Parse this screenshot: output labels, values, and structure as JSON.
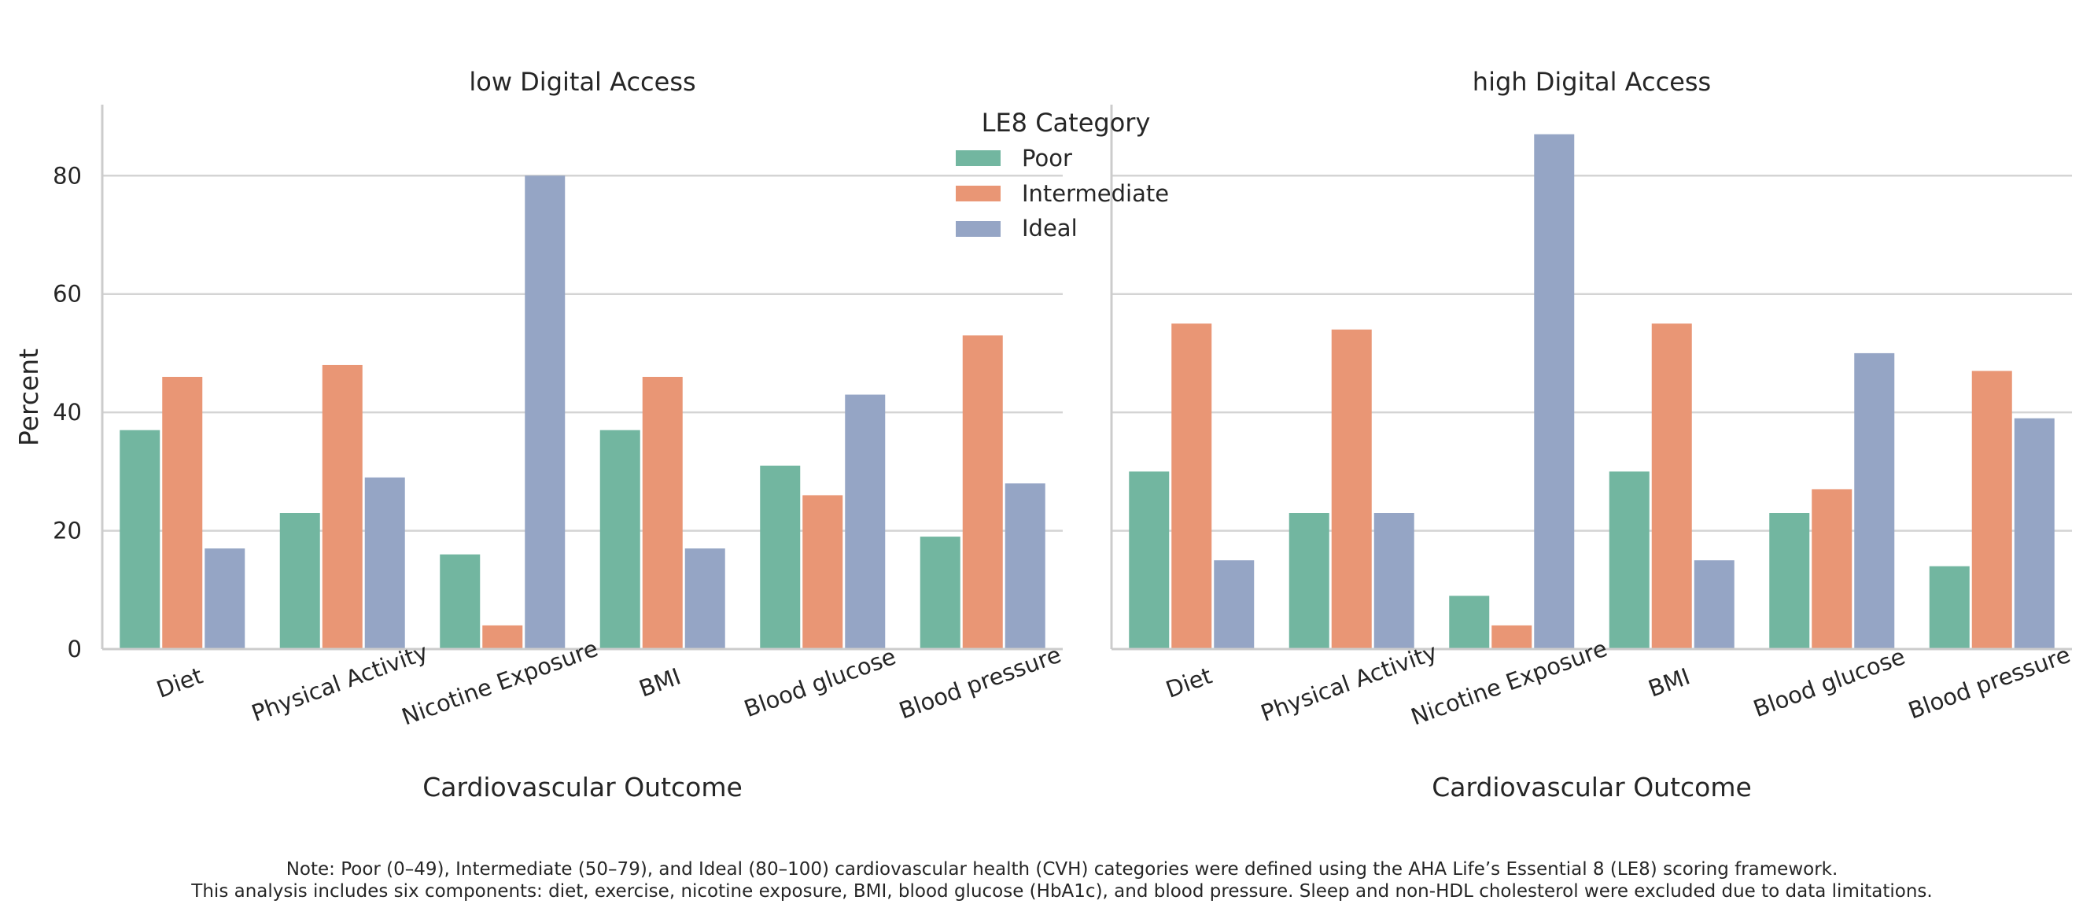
{
  "chart_data": {
    "type": "bar",
    "facet_by": "Digital Access",
    "categories": [
      "Diet",
      "Physical Activity",
      "Nicotine Exposure",
      "BMI",
      "Blood glucose",
      "Blood pressure"
    ],
    "xlabel": "Cardiovascular Outcome",
    "ylabel": "Percent",
    "ylim": [
      0,
      92
    ],
    "yticks": [
      "0",
      "20",
      "40",
      "60",
      "80"
    ],
    "ytick_values": [
      0,
      20,
      40,
      60,
      80
    ],
    "grid": true,
    "legend": {
      "title": "LE8 Category",
      "placement": "top-center",
      "entries": [
        "Poor",
        "Intermediate",
        "Ideal"
      ]
    },
    "colors": {
      "Poor": "#72b6a0",
      "Intermediate": "#e99675",
      "Ideal": "#95a5c5"
    },
    "panels": [
      {
        "title": "low  Digital Access",
        "series": [
          {
            "name": "Poor",
            "values": [
              37,
              23,
              16,
              37,
              31,
              19
            ]
          },
          {
            "name": "Intermediate",
            "values": [
              46,
              48,
              4,
              46,
              26,
              53
            ]
          },
          {
            "name": "Ideal",
            "values": [
              17,
              29,
              80,
              17,
              43,
              28
            ]
          }
        ]
      },
      {
        "title": "high  Digital Access",
        "series": [
          {
            "name": "Poor",
            "values": [
              30,
              23,
              9,
              30,
              23,
              14
            ]
          },
          {
            "name": "Intermediate",
            "values": [
              55,
              54,
              4,
              55,
              27,
              47
            ]
          },
          {
            "name": "Ideal",
            "values": [
              15,
              23,
              87,
              15,
              50,
              39
            ]
          }
        ]
      }
    ]
  },
  "note": {
    "line1": "Note: Poor (0–49), Intermediate (50–79), and Ideal (80–100) cardiovascular health (CVH) categories were defined using the AHA Life’s Essential 8 (LE8) scoring framework.",
    "line2": "This analysis includes six components: diet, exercise, nicotine exposure, BMI, blood glucose (HbA1c), and blood pressure. Sleep and non-HDL cholesterol were excluded due to data limitations."
  }
}
